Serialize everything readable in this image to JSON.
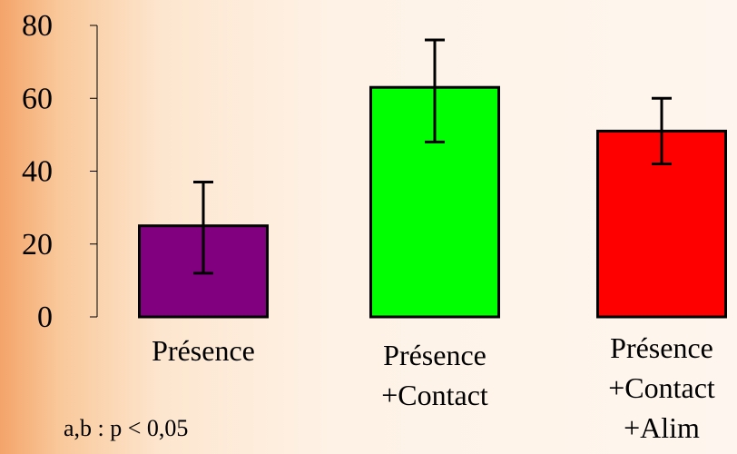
{
  "chart_data": {
    "type": "bar",
    "title": "",
    "xlabel": "",
    "ylabel": "",
    "ylim": [
      0,
      80
    ],
    "yticks": [
      0,
      20,
      40,
      60,
      80
    ],
    "grid": false,
    "categories": [
      [
        "Présence"
      ],
      [
        "Présence",
        "+Contact"
      ],
      [
        "Présence",
        "+Contact",
        "+Alim"
      ]
    ],
    "values": [
      25,
      63,
      51
    ],
    "error_low": [
      12,
      48,
      42
    ],
    "error_high": [
      37,
      76,
      60
    ],
    "colors": [
      "#800080",
      "#00ff00",
      "#ff0000"
    ],
    "annotation": "a,b : p < 0,05"
  }
}
